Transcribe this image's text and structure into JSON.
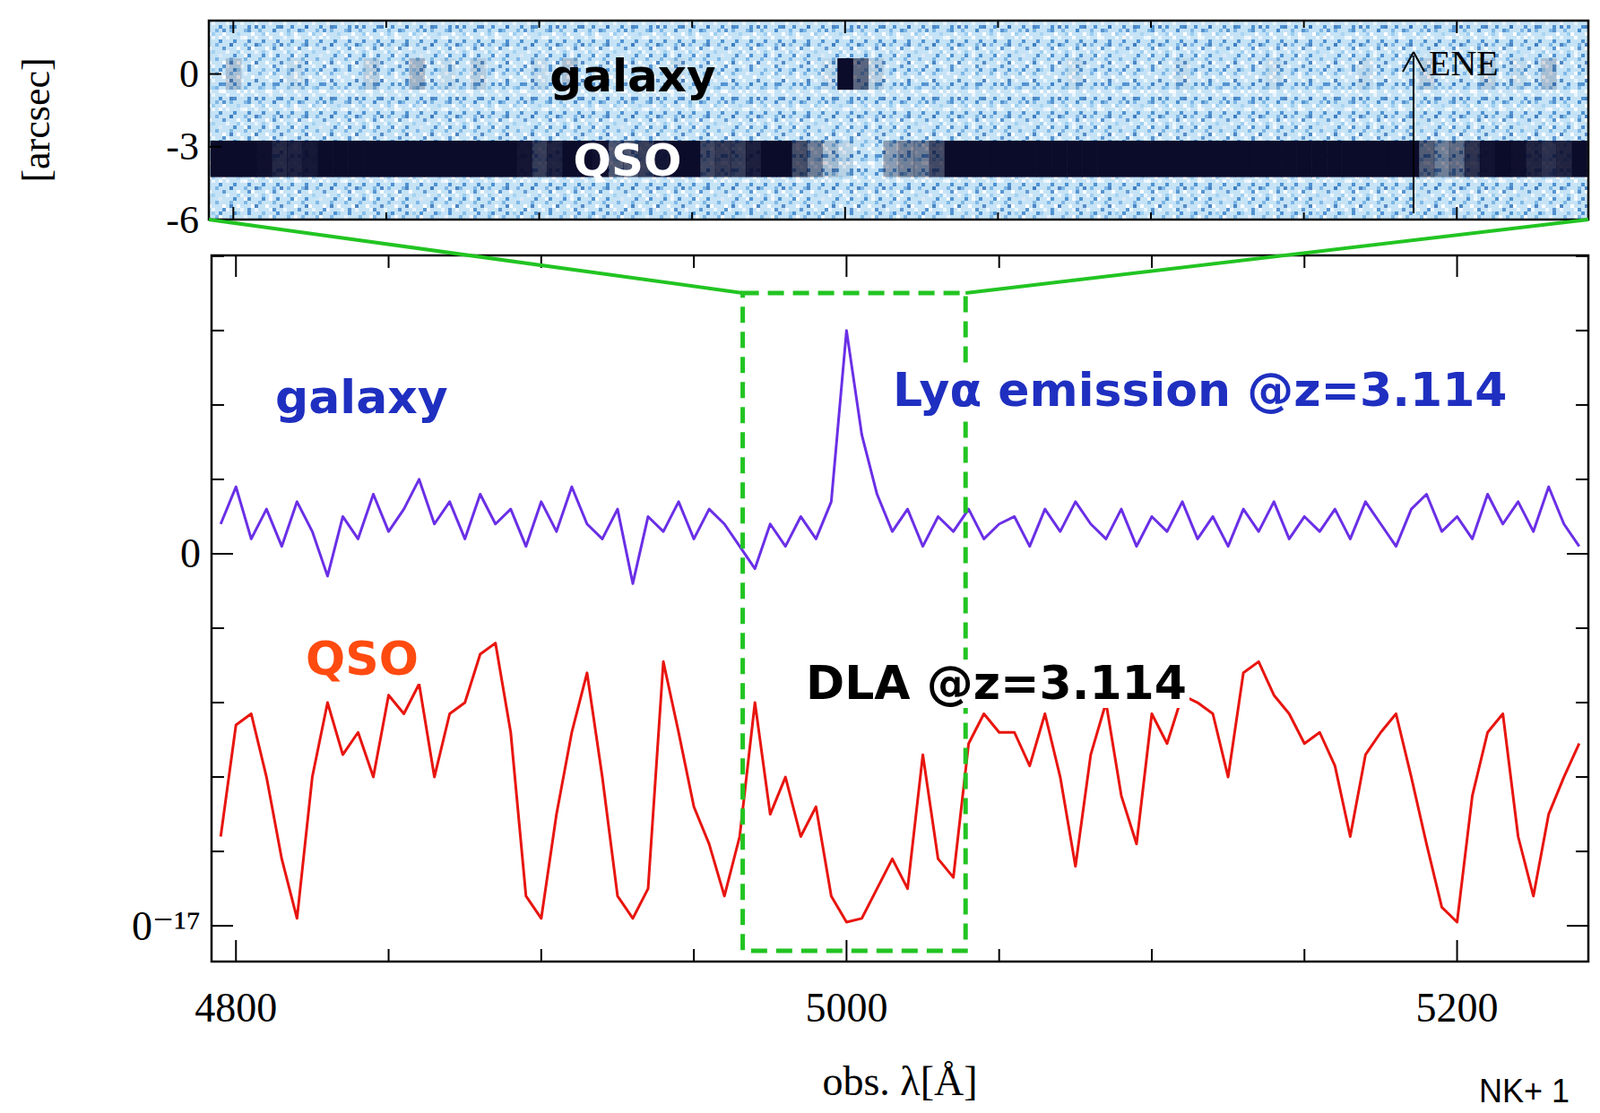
{
  "chart_data": [
    {
      "type": "spectrum_2d",
      "ylabel": "[arcsec]",
      "xlim": [
        4792,
        5243
      ],
      "xticks": [
        4800,
        5000,
        5200
      ],
      "ylim": [
        -6,
        2.2
      ],
      "yticks": [
        0,
        -3,
        -6
      ],
      "tick_labels": "y",
      "traces": [
        {
          "name": "galaxy",
          "offset": 0
        },
        {
          "name": "QSO",
          "offset": -3.5
        }
      ],
      "annotations": [
        "ENE"
      ]
    },
    {
      "type": "line",
      "xlabel": "obs. λ[Å]",
      "xlim": [
        4792,
        5243
      ],
      "xticks": [
        4800,
        5000,
        5200
      ],
      "ylim": [
        -5.48,
        4.01
      ],
      "yticks": [
        {
          "value": -5,
          "label": "0⁻¹⁷"
        },
        0
      ],
      "x": [
        4795,
        4800,
        4805,
        4810,
        4815,
        4820,
        4825,
        4830,
        4835,
        4840,
        4845,
        4850,
        4855,
        4860,
        4865,
        4870,
        4875,
        4880,
        4885,
        4890,
        4895,
        4900,
        4905,
        4910,
        4915,
        4920,
        4925,
        4930,
        4935,
        4940,
        4945,
        4950,
        4955,
        4960,
        4965,
        4970,
        4975,
        4980,
        4985,
        4990,
        4995,
        5000,
        5005,
        5010,
        5015,
        5020,
        5025,
        5030,
        5035,
        5040,
        5045,
        5050,
        5055,
        5060,
        5065,
        5070,
        5075,
        5080,
        5085,
        5090,
        5095,
        5100,
        5105,
        5110,
        5115,
        5120,
        5125,
        5130,
        5135,
        5140,
        5145,
        5150,
        5155,
        5160,
        5165,
        5170,
        5175,
        5180,
        5185,
        5190,
        5195,
        5200,
        5205,
        5210,
        5215,
        5220,
        5225,
        5230,
        5235,
        5240
      ],
      "series": [
        {
          "name": "galaxy",
          "color": "#6a2fe6",
          "values": [
            0.4,
            0.9,
            0.2,
            0.6,
            0.1,
            0.7,
            0.3,
            -0.3,
            0.5,
            0.2,
            0.8,
            0.3,
            0.6,
            1.0,
            0.4,
            0.7,
            0.2,
            0.8,
            0.4,
            0.6,
            0.1,
            0.7,
            0.3,
            0.9,
            0.4,
            0.2,
            0.6,
            -0.4,
            0.5,
            0.3,
            0.7,
            0.2,
            0.6,
            0.4,
            0.1,
            -0.2,
            0.4,
            0.1,
            0.5,
            0.2,
            0.7,
            3.0,
            1.6,
            0.8,
            0.3,
            0.6,
            0.1,
            0.5,
            0.3,
            0.6,
            0.2,
            0.4,
            0.5,
            0.1,
            0.6,
            0.3,
            0.7,
            0.4,
            0.2,
            0.6,
            0.1,
            0.5,
            0.3,
            0.7,
            0.2,
            0.5,
            0.1,
            0.6,
            0.3,
            0.7,
            0.2,
            0.5,
            0.3,
            0.6,
            0.2,
            0.7,
            0.4,
            0.1,
            0.6,
            0.8,
            0.3,
            0.5,
            0.2,
            0.8,
            0.4,
            0.7,
            0.3,
            0.9,
            0.4,
            0.1
          ]
        },
        {
          "name": "QSO",
          "color": "#e8150f",
          "values": [
            -3.8,
            -2.3,
            -2.15,
            -3.0,
            -4.1,
            -4.9,
            -3.0,
            -2.0,
            -2.7,
            -2.4,
            -3.0,
            -1.9,
            -2.15,
            -1.75,
            -3.0,
            -2.15,
            -2.0,
            -1.35,
            -1.2,
            -2.4,
            -4.6,
            -4.9,
            -3.5,
            -2.4,
            -1.6,
            -3.0,
            -4.6,
            -4.9,
            -4.5,
            -1.45,
            -2.4,
            -3.4,
            -3.9,
            -4.6,
            -3.8,
            -2.0,
            -3.5,
            -3.0,
            -3.8,
            -3.4,
            -4.6,
            -4.95,
            -4.9,
            -4.5,
            -4.1,
            -4.5,
            -2.7,
            -4.1,
            -4.35,
            -2.55,
            -2.15,
            -2.4,
            -2.4,
            -2.85,
            -2.15,
            -3.0,
            -4.2,
            -2.7,
            -2.0,
            -3.25,
            -3.9,
            -2.15,
            -2.55,
            -1.9,
            -2.0,
            -2.15,
            -3.0,
            -1.6,
            -1.45,
            -1.9,
            -2.15,
            -2.55,
            -2.4,
            -2.85,
            -3.8,
            -2.7,
            -2.4,
            -2.15,
            -3.0,
            -3.9,
            -4.75,
            -4.95,
            -3.25,
            -2.4,
            -2.15,
            -3.8,
            -4.6,
            -3.5,
            -3.0,
            -2.55
          ]
        }
      ],
      "annotations": [
        {
          "text": "Lyα emission @z=3.114",
          "color": "#1f2fc0"
        },
        {
          "text": "DLA @z=3.114",
          "color": "#000000"
        }
      ],
      "highlight_range": [
        4966,
        5039
      ],
      "credit": "NK+ 1"
    }
  ]
}
